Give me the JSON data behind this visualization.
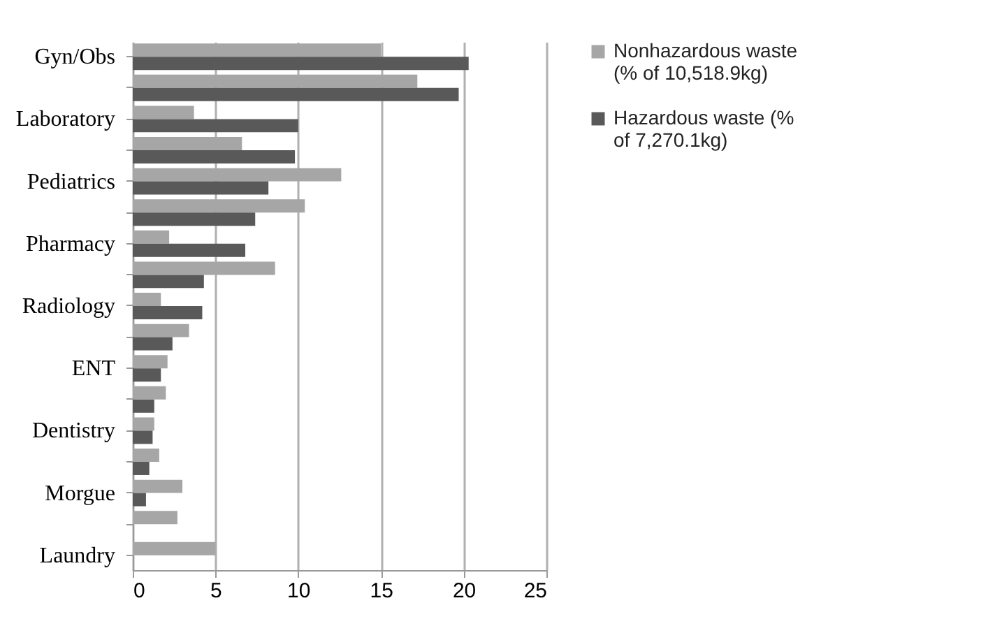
{
  "chart_data": {
    "type": "bar",
    "orientation": "horizontal",
    "categories": [
      "Gyn/Obs",
      null,
      "Laboratory",
      null,
      "Pediatrics",
      null,
      "Pharmacy",
      null,
      "Radiology",
      null,
      "ENT",
      null,
      "Dentistry",
      null,
      "Morgue",
      null,
      "Laundry"
    ],
    "series": [
      {
        "name": "Nonhazardous waste (% of 10,518.9kg)",
        "color": "#a6a6a6",
        "values": [
          15.0,
          17.2,
          3.7,
          6.6,
          12.6,
          10.4,
          2.2,
          8.6,
          1.7,
          3.4,
          2.1,
          2.0,
          1.3,
          1.6,
          3.0,
          2.7,
          5.0
        ]
      },
      {
        "name": "Hazardous waste (% of 7,270.1kg)",
        "color": "#595959",
        "values": [
          20.3,
          19.7,
          10.0,
          9.8,
          8.2,
          7.4,
          6.8,
          4.3,
          4.2,
          2.4,
          1.7,
          1.3,
          1.2,
          1.0,
          0.8,
          0,
          0
        ]
      }
    ],
    "xlim": [
      0,
      25
    ],
    "xticks": [
      0,
      5,
      10,
      15,
      20,
      25
    ],
    "grid": "x",
    "legend": "right"
  }
}
